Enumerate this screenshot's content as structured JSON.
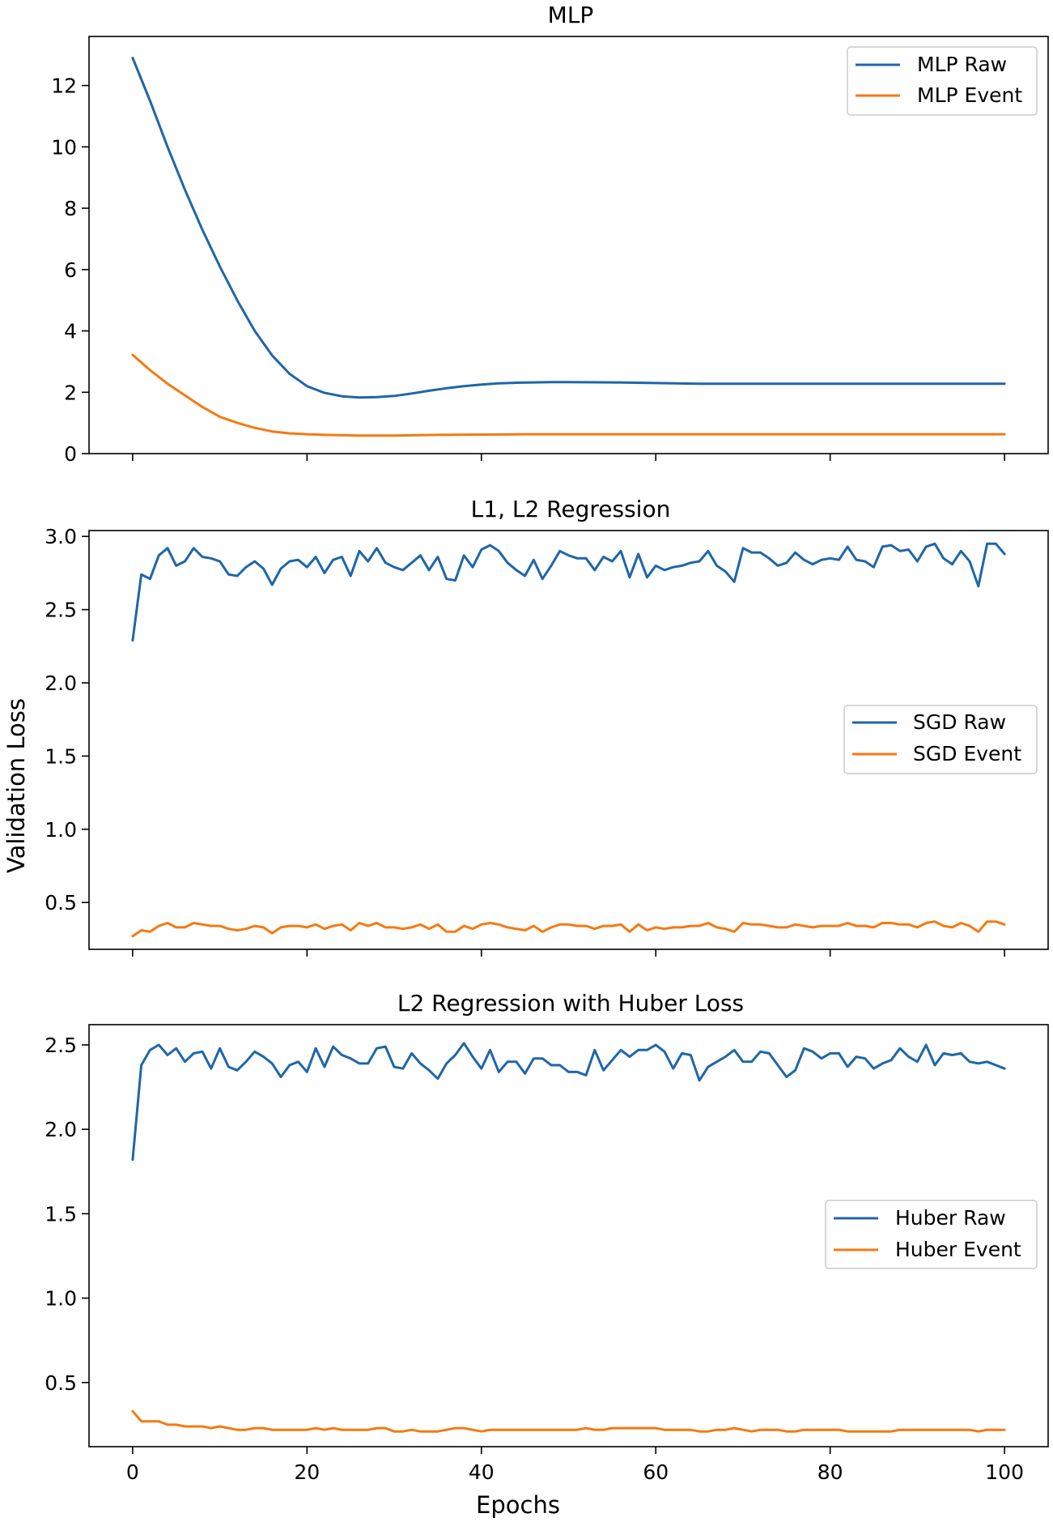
{
  "figure": {
    "ylabel": "Validation Loss",
    "xlabel": "Epochs"
  },
  "colors": {
    "raw": "#1f66a7",
    "event": "#f47a12"
  },
  "chart_data": [
    {
      "type": "line",
      "title": "MLP",
      "ylim": [
        0,
        13.6
      ],
      "yticks": [
        0,
        2,
        4,
        6,
        8,
        10,
        12
      ],
      "ytick_labels": [
        "0",
        "2",
        "4",
        "6",
        "8",
        "10",
        "12"
      ],
      "xlim": [
        -5,
        105
      ],
      "xticks": [
        0,
        20,
        40,
        60,
        80,
        100
      ],
      "xtick_labels": [],
      "legend_position": "upper right",
      "series": [
        {
          "name": "MLP Raw",
          "color_key": "raw",
          "x": [
            0,
            2,
            4,
            6,
            8,
            10,
            12,
            14,
            16,
            18,
            20,
            22,
            24,
            26,
            28,
            30,
            32,
            34,
            36,
            38,
            40,
            42,
            44,
            46,
            48,
            50,
            55,
            60,
            65,
            70,
            75,
            80,
            85,
            90,
            95,
            100
          ],
          "values": [
            12.9,
            11.5,
            10.0,
            8.6,
            7.3,
            6.1,
            5.0,
            4.0,
            3.2,
            2.6,
            2.2,
            1.98,
            1.87,
            1.83,
            1.84,
            1.88,
            1.96,
            2.05,
            2.13,
            2.2,
            2.25,
            2.29,
            2.31,
            2.32,
            2.33,
            2.33,
            2.32,
            2.3,
            2.28,
            2.28,
            2.28,
            2.28,
            2.28,
            2.28,
            2.28,
            2.28
          ]
        },
        {
          "name": "MLP Event",
          "color_key": "event",
          "x": [
            0,
            2,
            4,
            6,
            8,
            10,
            12,
            14,
            16,
            18,
            20,
            22,
            24,
            26,
            28,
            30,
            35,
            40,
            45,
            50,
            60,
            70,
            80,
            90,
            100
          ],
          "values": [
            3.22,
            2.72,
            2.28,
            1.9,
            1.52,
            1.2,
            1.0,
            0.84,
            0.72,
            0.66,
            0.63,
            0.61,
            0.6,
            0.59,
            0.59,
            0.59,
            0.61,
            0.62,
            0.63,
            0.63,
            0.63,
            0.63,
            0.63,
            0.63,
            0.63
          ]
        }
      ]
    },
    {
      "type": "line",
      "title": "L1, L2 Regression",
      "ylim": [
        0.18,
        3.04
      ],
      "yticks": [
        0.5,
        1.0,
        1.5,
        2.0,
        2.5,
        3.0
      ],
      "ytick_labels": [
        "0.5",
        "1.0",
        "1.5",
        "2.0",
        "2.5",
        "3.0"
      ],
      "xlim": [
        -5,
        105
      ],
      "xticks": [
        0,
        20,
        40,
        60,
        80,
        100
      ],
      "xtick_labels": [],
      "legend_position": "center right",
      "series": [
        {
          "name": "SGD Raw",
          "color_key": "raw",
          "values": [
            2.29,
            2.74,
            2.71,
            2.87,
            2.92,
            2.8,
            2.83,
            2.92,
            2.86,
            2.85,
            2.83,
            2.74,
            2.73,
            2.79,
            2.83,
            2.78,
            2.67,
            2.78,
            2.83,
            2.84,
            2.79,
            2.86,
            2.75,
            2.84,
            2.86,
            2.73,
            2.9,
            2.83,
            2.92,
            2.82,
            2.79,
            2.77,
            2.82,
            2.87,
            2.77,
            2.86,
            2.71,
            2.7,
            2.87,
            2.79,
            2.91,
            2.94,
            2.9,
            2.82,
            2.77,
            2.73,
            2.84,
            2.71,
            2.8,
            2.9,
            2.87,
            2.85,
            2.85,
            2.77,
            2.86,
            2.83,
            2.9,
            2.72,
            2.88,
            2.72,
            2.8,
            2.77,
            2.79,
            2.8,
            2.82,
            2.83,
            2.9,
            2.8,
            2.76,
            2.69,
            2.92,
            2.89,
            2.89,
            2.85,
            2.8,
            2.82,
            2.89,
            2.84,
            2.81,
            2.84,
            2.85,
            2.84,
            2.93,
            2.84,
            2.83,
            2.79,
            2.93,
            2.94,
            2.9,
            2.91,
            2.83,
            2.93,
            2.95,
            2.85,
            2.81,
            2.9,
            2.83,
            2.66,
            2.95,
            2.95,
            2.88
          ]
        },
        {
          "name": "SGD Event",
          "color_key": "event",
          "values": [
            0.27,
            0.31,
            0.3,
            0.34,
            0.36,
            0.33,
            0.33,
            0.36,
            0.35,
            0.34,
            0.34,
            0.32,
            0.31,
            0.32,
            0.34,
            0.33,
            0.29,
            0.33,
            0.34,
            0.34,
            0.33,
            0.35,
            0.32,
            0.34,
            0.35,
            0.31,
            0.36,
            0.34,
            0.36,
            0.33,
            0.33,
            0.32,
            0.33,
            0.35,
            0.32,
            0.35,
            0.3,
            0.3,
            0.34,
            0.32,
            0.35,
            0.36,
            0.35,
            0.33,
            0.32,
            0.31,
            0.34,
            0.3,
            0.33,
            0.35,
            0.35,
            0.34,
            0.34,
            0.32,
            0.34,
            0.34,
            0.35,
            0.3,
            0.35,
            0.31,
            0.33,
            0.32,
            0.33,
            0.33,
            0.34,
            0.34,
            0.36,
            0.33,
            0.32,
            0.3,
            0.36,
            0.35,
            0.35,
            0.34,
            0.33,
            0.33,
            0.35,
            0.34,
            0.33,
            0.34,
            0.34,
            0.34,
            0.36,
            0.34,
            0.34,
            0.33,
            0.36,
            0.36,
            0.35,
            0.35,
            0.33,
            0.36,
            0.37,
            0.34,
            0.33,
            0.36,
            0.34,
            0.3,
            0.37,
            0.37,
            0.35
          ]
        }
      ]
    },
    {
      "type": "line",
      "title": "L2 Regression with Huber Loss",
      "ylim": [
        0.12,
        2.62
      ],
      "yticks": [
        0.5,
        1.0,
        1.5,
        2.0,
        2.5
      ],
      "ytick_labels": [
        "0.5",
        "1.0",
        "1.5",
        "2.0",
        "2.5"
      ],
      "xlim": [
        -5,
        105
      ],
      "xticks": [
        0,
        20,
        40,
        60,
        80,
        100
      ],
      "xtick_labels": [
        "0",
        "20",
        "40",
        "60",
        "80",
        "100"
      ],
      "legend_position": "center right",
      "series": [
        {
          "name": "Huber Raw",
          "color_key": "raw",
          "values": [
            1.82,
            2.38,
            2.47,
            2.5,
            2.44,
            2.48,
            2.4,
            2.45,
            2.46,
            2.36,
            2.48,
            2.37,
            2.35,
            2.4,
            2.46,
            2.43,
            2.39,
            2.31,
            2.38,
            2.4,
            2.34,
            2.48,
            2.37,
            2.49,
            2.44,
            2.42,
            2.39,
            2.39,
            2.48,
            2.49,
            2.37,
            2.36,
            2.45,
            2.39,
            2.35,
            2.3,
            2.39,
            2.44,
            2.51,
            2.43,
            2.36,
            2.47,
            2.34,
            2.4,
            2.4,
            2.33,
            2.42,
            2.42,
            2.38,
            2.38,
            2.34,
            2.34,
            2.32,
            2.47,
            2.35,
            2.41,
            2.47,
            2.43,
            2.47,
            2.47,
            2.5,
            2.46,
            2.36,
            2.45,
            2.44,
            2.29,
            2.37,
            2.4,
            2.43,
            2.47,
            2.4,
            2.4,
            2.46,
            2.45,
            2.38,
            2.31,
            2.35,
            2.48,
            2.46,
            2.42,
            2.45,
            2.45,
            2.37,
            2.43,
            2.42,
            2.36,
            2.39,
            2.41,
            2.48,
            2.43,
            2.4,
            2.5,
            2.38,
            2.45,
            2.44,
            2.45,
            2.4,
            2.39,
            2.4,
            2.38,
            2.36
          ]
        },
        {
          "name": "Huber Event",
          "color_key": "event",
          "values": [
            0.33,
            0.27,
            0.27,
            0.27,
            0.25,
            0.25,
            0.24,
            0.24,
            0.24,
            0.23,
            0.24,
            0.23,
            0.22,
            0.22,
            0.23,
            0.23,
            0.22,
            0.22,
            0.22,
            0.22,
            0.22,
            0.23,
            0.22,
            0.23,
            0.22,
            0.22,
            0.22,
            0.22,
            0.23,
            0.23,
            0.21,
            0.21,
            0.22,
            0.21,
            0.21,
            0.21,
            0.22,
            0.23,
            0.23,
            0.22,
            0.21,
            0.22,
            0.22,
            0.22,
            0.22,
            0.22,
            0.22,
            0.22,
            0.22,
            0.22,
            0.22,
            0.22,
            0.23,
            0.22,
            0.22,
            0.23,
            0.23,
            0.23,
            0.23,
            0.23,
            0.23,
            0.22,
            0.22,
            0.22,
            0.22,
            0.21,
            0.21,
            0.22,
            0.22,
            0.23,
            0.22,
            0.21,
            0.22,
            0.22,
            0.22,
            0.21,
            0.21,
            0.22,
            0.22,
            0.22,
            0.22,
            0.22,
            0.21,
            0.21,
            0.21,
            0.21,
            0.21,
            0.21,
            0.22,
            0.22,
            0.22,
            0.22,
            0.22,
            0.22,
            0.22,
            0.22,
            0.22,
            0.21,
            0.22,
            0.22,
            0.22
          ]
        }
      ]
    }
  ]
}
